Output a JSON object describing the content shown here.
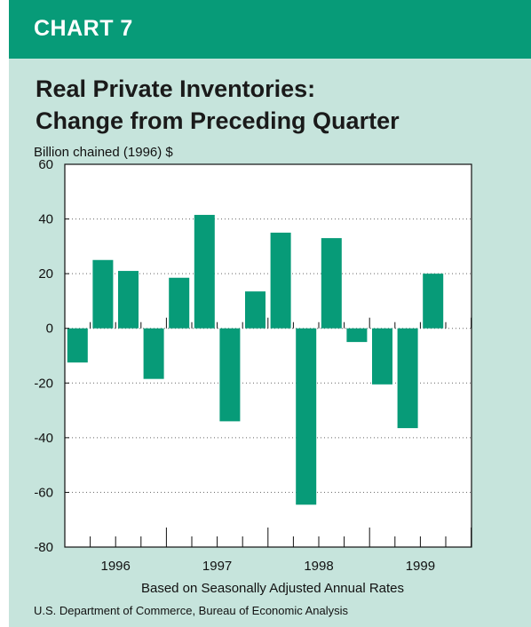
{
  "header": {
    "label": "CHART 7"
  },
  "colors": {
    "banner": "#079b78",
    "panel": "#c6e4dc",
    "bar": "#079b78",
    "plot_bg": "#ffffff"
  },
  "chart_data": {
    "type": "bar",
    "title": "Real Private Inventories: Change from Preceding Quarter",
    "title_lines": [
      "Real Private Inventories:",
      "Change from Preceding Quarter"
    ],
    "ylabel": "Billion chained (1996) $",
    "xlabel": "Based on Seasonally Adjusted Annual Rates",
    "ylim": [
      -80,
      60
    ],
    "yticks": [
      60,
      40,
      20,
      0,
      -20,
      -40,
      -60,
      -80
    ],
    "year_labels": [
      "1996",
      "1997",
      "1998",
      "1999"
    ],
    "categories": [
      "1996 Q1",
      "1996 Q2",
      "1996 Q3",
      "1996 Q4",
      "1997 Q1",
      "1997 Q2",
      "1997 Q3",
      "1997 Q4",
      "1998 Q1",
      "1998 Q2",
      "1998 Q3",
      "1998 Q4",
      "1999 Q1",
      "1999 Q2",
      "1999 Q3"
    ],
    "values": [
      -12.5,
      25,
      21,
      -18.5,
      18.5,
      41.5,
      -34,
      13.5,
      35,
      -64.5,
      33,
      -5,
      -20.5,
      -36.5,
      20
    ],
    "grid": "dotted horizontal"
  },
  "source": "U.S. Department of Commerce, Bureau of Economic Analysis"
}
